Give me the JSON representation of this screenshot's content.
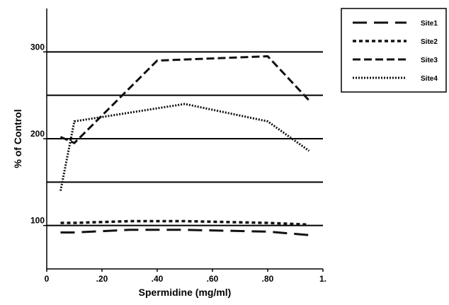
{
  "chart_data": {
    "type": "line",
    "title": "",
    "xlabel": "Spermidine (mg/ml)",
    "ylabel": "% of Control",
    "xlim": [
      0,
      1.0
    ],
    "ylim": [
      50,
      350
    ],
    "x_ticks": [
      {
        "value": 0,
        "label": "0"
      },
      {
        "value": 0.2,
        "label": ".20"
      },
      {
        "value": 0.4,
        "label": ".40"
      },
      {
        "value": 0.6,
        "label": ".60"
      },
      {
        "value": 0.8,
        "label": ".80"
      },
      {
        "value": 1.0,
        "label": "1."
      }
    ],
    "y_ticks": [
      {
        "value": 100,
        "label": "100"
      },
      {
        "value": 200,
        "label": "200"
      },
      {
        "value": 300,
        "label": "300"
      }
    ],
    "gridlines_y": [
      100,
      150,
      200,
      250,
      300
    ],
    "grid": true,
    "legend_position": "right",
    "series": [
      {
        "name": "Site1",
        "style": "long-dash",
        "x": [
          0.05,
          0.1,
          0.3,
          0.5,
          0.8,
          0.95
        ],
        "y": [
          92,
          92,
          95,
          95,
          93,
          89
        ]
      },
      {
        "name": "Site2",
        "style": "short-dash",
        "x": [
          0.05,
          0.1,
          0.3,
          0.5,
          0.8,
          0.95
        ],
        "y": [
          103,
          103,
          105,
          105,
          103,
          101
        ]
      },
      {
        "name": "Site3",
        "style": "dash",
        "x": [
          0.05,
          0.1,
          0.4,
          0.8,
          0.95
        ],
        "y": [
          202,
          195,
          290,
          295,
          244
        ]
      },
      {
        "name": "Site4",
        "style": "dotted",
        "x": [
          0.05,
          0.1,
          0.3,
          0.5,
          0.8,
          0.95
        ],
        "y": [
          140,
          220,
          230,
          240,
          220,
          186
        ]
      }
    ]
  }
}
